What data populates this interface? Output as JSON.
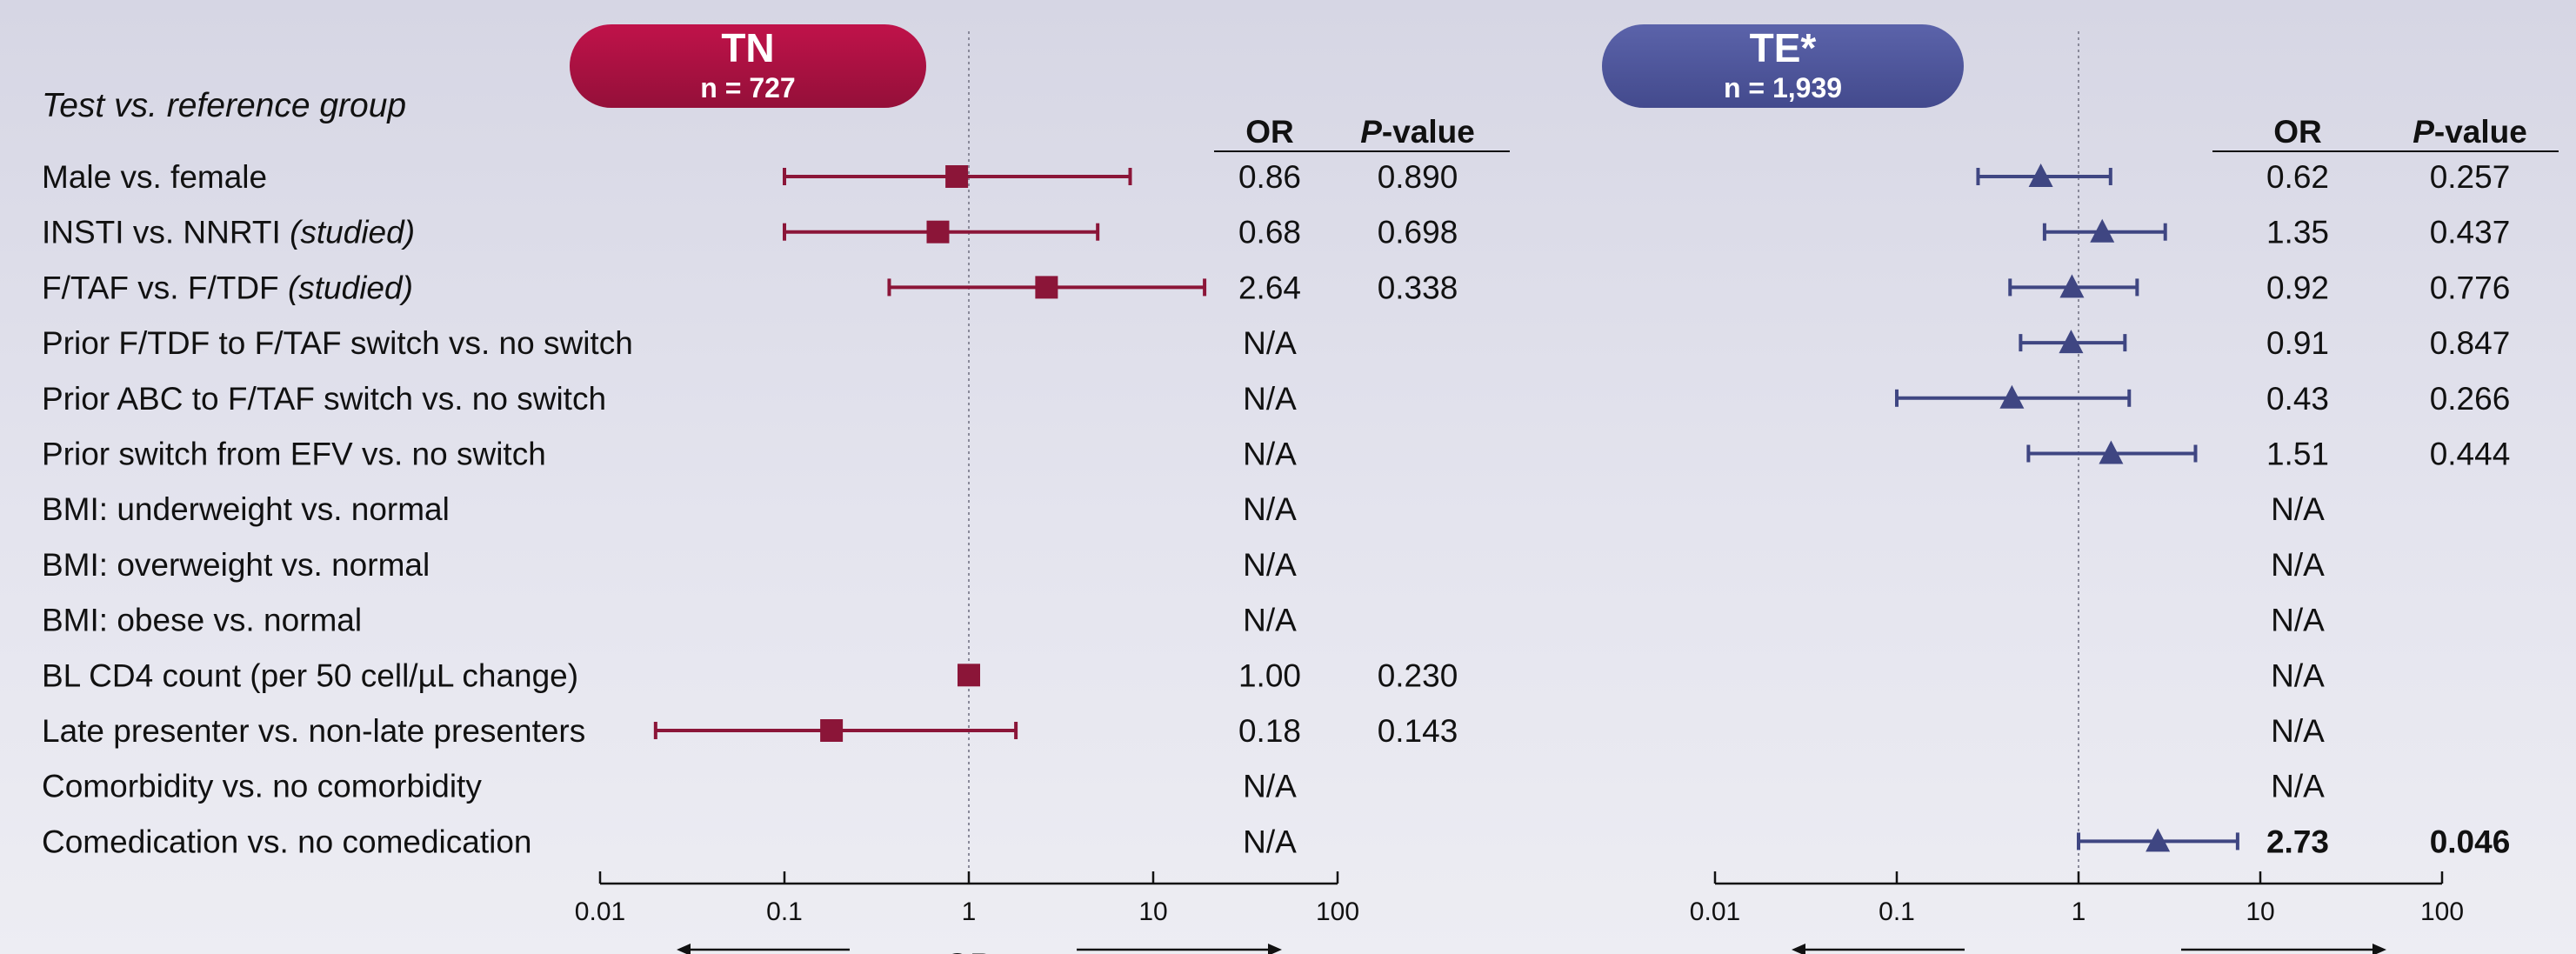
{
  "colors": {
    "tn": "#8b1538",
    "tn_pill_top": "#c0124a",
    "tn_pill_bottom": "#941039",
    "te": "#3f4682",
    "te_pill_top": "#5b63aa",
    "te_pill_bottom": "#434a8d"
  },
  "section_title": "Test vs. reference group",
  "headers": {
    "or": "OR",
    "p_italic": "P",
    "p_rest": "-value"
  },
  "na": "N/A",
  "axis": {
    "ticks": [
      "0.01",
      "0.1",
      "1",
      "10",
      "100"
    ],
    "title": "OR"
  },
  "rows": [
    {
      "label": "Male vs. female",
      "label_italic": ""
    },
    {
      "label": "INSTI vs. NNRTI ",
      "label_italic": "(studied)"
    },
    {
      "label": "F/TAF vs. F/TDF ",
      "label_italic": "(studied)"
    },
    {
      "label": "Prior F/TDF to F/TAF switch vs. no switch",
      "label_italic": ""
    },
    {
      "label": "Prior ABC to F/TAF switch vs. no switch",
      "label_italic": ""
    },
    {
      "label": "Prior switch from EFV vs. no switch",
      "label_italic": ""
    },
    {
      "label": "BMI: underweight vs. normal",
      "label_italic": ""
    },
    {
      "label": "BMI: overweight vs. normal",
      "label_italic": ""
    },
    {
      "label": "BMI: obese vs. normal",
      "label_italic": ""
    },
    {
      "label": "BL CD4 count (per 50 cell/µL change)",
      "label_italic": ""
    },
    {
      "label": "Late presenter vs. non-late presenters",
      "label_italic": ""
    },
    {
      "label": "Comorbidity vs. no comorbidity",
      "label_italic": ""
    },
    {
      "label": "Comedication vs. no comedication",
      "label_italic": ""
    }
  ],
  "chart_data": [
    {
      "type": "forest",
      "panel": "TN",
      "title": "TN",
      "subtitle": "n = 727",
      "marker": "square",
      "x_scale": "log",
      "xlim": [
        0.01,
        100
      ],
      "reference_line": 1,
      "points": [
        {
          "or": 0.86,
          "lo": 0.1,
          "hi": 7.5,
          "or_label": "0.86",
          "p": "0.890",
          "bold": false
        },
        {
          "or": 0.68,
          "lo": 0.1,
          "hi": 5.0,
          "or_label": "0.68",
          "p": "0.698",
          "bold": false
        },
        {
          "or": 2.64,
          "lo": 0.37,
          "hi": 19,
          "or_label": "2.64",
          "p": "0.338",
          "bold": false
        },
        null,
        null,
        null,
        null,
        null,
        null,
        {
          "or": 1.0,
          "lo": 1.0,
          "hi": 1.0,
          "or_label": "1.00",
          "p": "0.230",
          "bold": false
        },
        {
          "or": 0.18,
          "lo": 0.02,
          "hi": 1.8,
          "or_label": "0.18",
          "p": "0.143",
          "bold": false
        },
        null,
        null
      ]
    },
    {
      "type": "forest",
      "panel": "TE",
      "title": "TE*",
      "subtitle": "n = 1,939",
      "marker": "triangle",
      "x_scale": "log",
      "xlim": [
        0.01,
        100
      ],
      "reference_line": 1,
      "points": [
        {
          "or": 0.62,
          "lo": 0.28,
          "hi": 1.5,
          "or_label": "0.62",
          "p": "0.257",
          "bold": false
        },
        {
          "or": 1.35,
          "lo": 0.65,
          "hi": 3.0,
          "or_label": "1.35",
          "p": "0.437",
          "bold": false
        },
        {
          "or": 0.92,
          "lo": 0.42,
          "hi": 2.1,
          "or_label": "0.92",
          "p": "0.776",
          "bold": false
        },
        {
          "or": 0.91,
          "lo": 0.48,
          "hi": 1.8,
          "or_label": "0.91",
          "p": "0.847",
          "bold": false
        },
        {
          "or": 0.43,
          "lo": 0.1,
          "hi": 1.9,
          "or_label": "0.43",
          "p": "0.266",
          "bold": false
        },
        {
          "or": 1.51,
          "lo": 0.53,
          "hi": 4.4,
          "or_label": "1.51",
          "p": "0.444",
          "bold": false
        },
        null,
        null,
        null,
        null,
        null,
        null,
        {
          "or": 2.73,
          "lo": 1.0,
          "hi": 7.5,
          "or_label": "2.73",
          "p": "0.046",
          "bold": true
        }
      ]
    }
  ]
}
